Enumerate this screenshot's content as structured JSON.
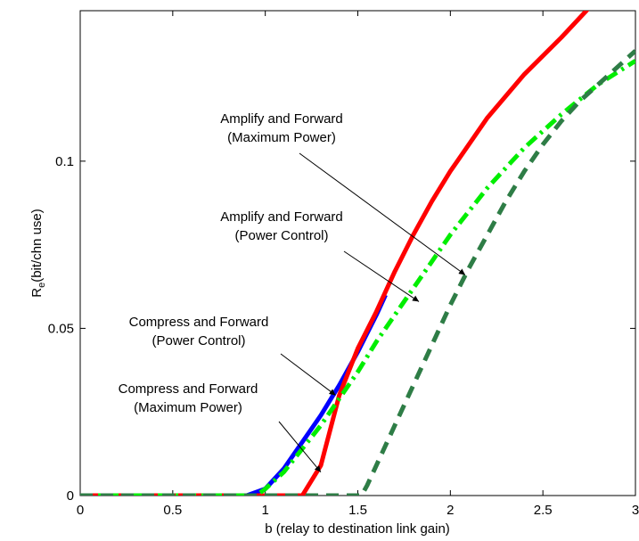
{
  "chart_data": {
    "type": "line",
    "xlabel": "b (relay to destination link gain)",
    "ylabel_main": "R",
    "ylabel_sub": "e",
    "ylabel_rest": "(bit/chn use)",
    "xlim": [
      0,
      3
    ],
    "ylim": [
      0,
      0.145
    ],
    "xticks": [
      {
        "value": 0,
        "label": "0"
      },
      {
        "value": 0.5,
        "label": "0.5"
      },
      {
        "value": 1,
        "label": "1"
      },
      {
        "value": 1.5,
        "label": "1.5"
      },
      {
        "value": 2,
        "label": "2"
      },
      {
        "value": 2.5,
        "label": "2.5"
      },
      {
        "value": 3,
        "label": "3"
      }
    ],
    "yticks": [
      {
        "value": 0,
        "label": "0"
      },
      {
        "value": 0.05,
        "label": "0.05"
      },
      {
        "value": 0.1,
        "label": "0.1"
      }
    ],
    "grid": false,
    "series": [
      {
        "id": "cf-power-control",
        "color": "#0000ff",
        "dash": "solid",
        "points": [
          [
            0,
            0
          ],
          [
            0.9,
            0
          ],
          [
            1.0,
            0.002
          ],
          [
            1.1,
            0.008
          ],
          [
            1.2,
            0.016
          ],
          [
            1.3,
            0.024
          ],
          [
            1.4,
            0.033
          ],
          [
            1.5,
            0.043
          ],
          [
            1.6,
            0.054
          ],
          [
            1.65,
            0.06
          ]
        ]
      },
      {
        "id": "af-maximum-power",
        "color": "#ff0000",
        "dash": "solid",
        "points": [
          [
            0,
            0
          ],
          [
            1.2,
            0
          ],
          [
            1.3,
            0.009
          ],
          [
            1.4,
            0.03
          ],
          [
            1.5,
            0.044
          ],
          [
            1.6,
            0.055
          ],
          [
            1.7,
            0.067
          ],
          [
            1.8,
            0.078
          ],
          [
            1.9,
            0.088
          ],
          [
            2.0,
            0.097
          ],
          [
            2.2,
            0.113
          ],
          [
            2.4,
            0.126
          ],
          [
            2.6,
            0.137
          ],
          [
            2.82,
            0.15
          ]
        ]
      },
      {
        "id": "af-power-control",
        "color": "#00ee00",
        "dash": "dashdot",
        "points": [
          [
            0,
            0
          ],
          [
            0.95,
            0
          ],
          [
            1.0,
            0.002
          ],
          [
            1.1,
            0.007
          ],
          [
            1.2,
            0.014
          ],
          [
            1.3,
            0.021
          ],
          [
            1.4,
            0.029
          ],
          [
            1.5,
            0.037
          ],
          [
            1.6,
            0.046
          ],
          [
            1.7,
            0.054
          ],
          [
            1.8,
            0.062
          ],
          [
            1.9,
            0.07
          ],
          [
            2.0,
            0.078
          ],
          [
            2.2,
            0.092
          ],
          [
            2.4,
            0.104
          ],
          [
            2.6,
            0.114
          ],
          [
            2.8,
            0.123
          ],
          [
            3.0,
            0.13
          ]
        ]
      },
      {
        "id": "cf-maximum-power",
        "color": "#2e7d46",
        "dash": "dashed",
        "points": [
          [
            0,
            0
          ],
          [
            1.52,
            0
          ],
          [
            1.55,
            0.003
          ],
          [
            1.6,
            0.009
          ],
          [
            1.7,
            0.021
          ],
          [
            1.8,
            0.033
          ],
          [
            1.9,
            0.045
          ],
          [
            2.0,
            0.057
          ],
          [
            2.1,
            0.068
          ],
          [
            2.2,
            0.078
          ],
          [
            2.3,
            0.088
          ],
          [
            2.4,
            0.097
          ],
          [
            2.5,
            0.105
          ],
          [
            2.6,
            0.112
          ],
          [
            2.7,
            0.118
          ],
          [
            2.8,
            0.123
          ],
          [
            2.9,
            0.128
          ],
          [
            3.0,
            0.133
          ]
        ]
      }
    ],
    "annotations": [
      {
        "id": "annot-af-max",
        "lines": [
          "Amplify and Forward",
          "(Maximum Power)"
        ],
        "arrow_to": [
          2.08,
          0.066
        ]
      },
      {
        "id": "annot-af-pc",
        "lines": [
          "Amplify and Forward",
          "(Power Control)"
        ],
        "arrow_to": [
          1.83,
          0.058
        ]
      },
      {
        "id": "annot-cf-pc",
        "lines": [
          "Compress and Forward",
          "(Power Control)"
        ],
        "arrow_to": [
          1.38,
          0.03
        ]
      },
      {
        "id": "annot-cf-max",
        "lines": [
          "Compress and Forward",
          "(Maximum Power)"
        ],
        "arrow_to": [
          1.3,
          0.007
        ]
      }
    ]
  }
}
